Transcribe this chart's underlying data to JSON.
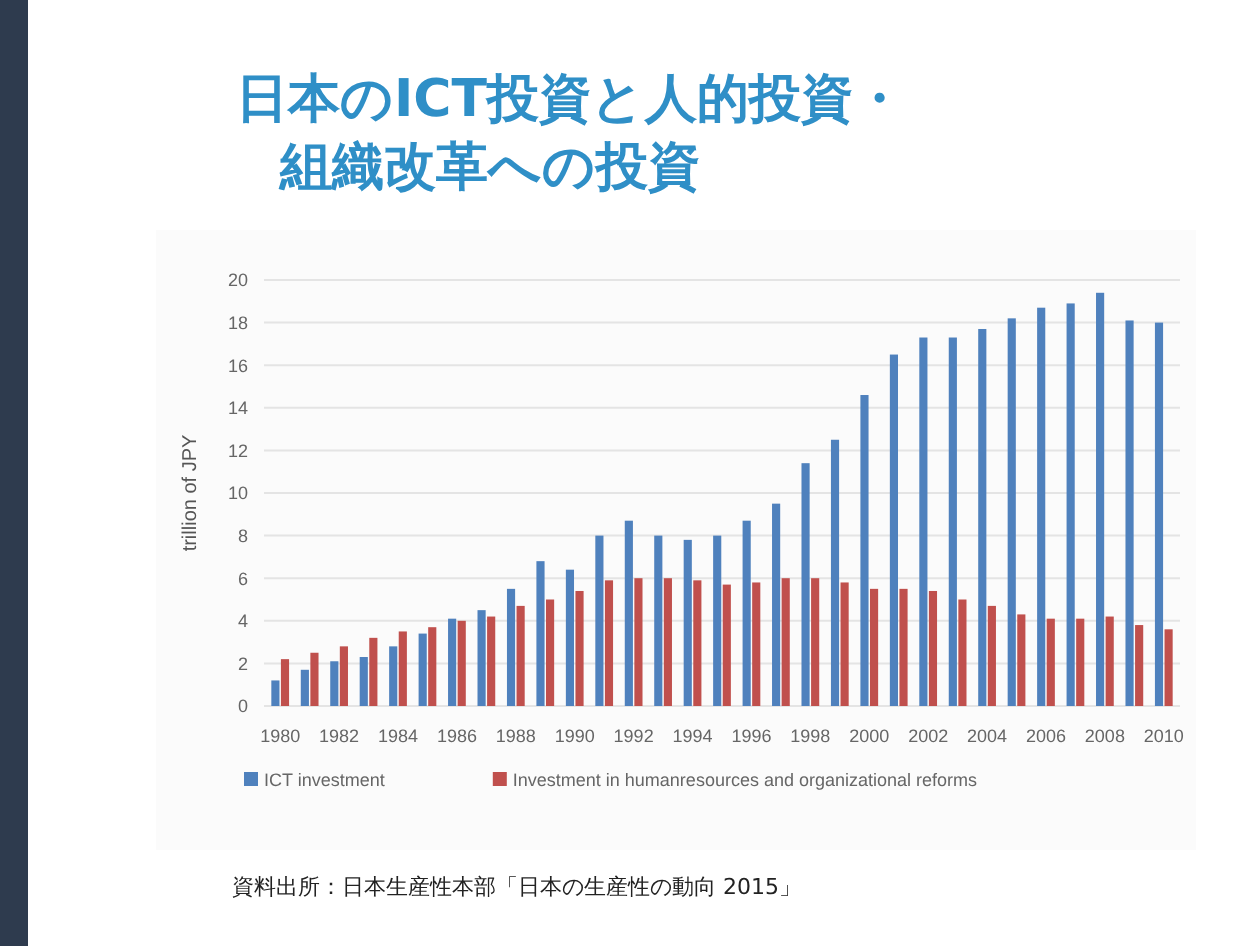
{
  "chart_data": {
    "type": "bar",
    "title": "日本のICT投資と人的投資・組織改革への投資",
    "ylabel": "trillion of JPY",
    "categories": [
      "1980",
      null,
      "1982",
      null,
      "1984",
      null,
      "1986",
      null,
      "1988",
      null,
      "1990",
      null,
      "1992",
      null,
      "1994",
      null,
      "1996",
      null,
      "1998",
      null,
      "2000",
      null,
      "2002",
      null,
      "2004",
      null,
      "2006",
      null,
      "2008",
      null,
      "2010"
    ],
    "series": [
      {
        "name": "ICT investment",
        "color": "#4f81bd",
        "values": [
          1.2,
          1.7,
          2.1,
          2.3,
          2.8,
          3.4,
          4.1,
          4.5,
          5.5,
          6.8,
          6.4,
          8.0,
          8.7,
          8.0,
          7.8,
          8.0,
          8.7,
          9.5,
          11.4,
          12.5,
          14.6,
          16.5,
          17.3,
          17.3,
          17.7,
          18.2,
          18.7,
          18.9,
          19.4,
          18.1,
          18.0
        ]
      },
      {
        "name": "Investment in humanresources and organizational reforms",
        "color": "#c0504d",
        "values": [
          2.2,
          2.5,
          2.8,
          3.2,
          3.5,
          3.7,
          4.0,
          4.2,
          4.7,
          5.0,
          5.4,
          5.9,
          6.0,
          6.0,
          5.9,
          5.7,
          5.8,
          6.0,
          6.0,
          5.8,
          5.5,
          5.5,
          5.4,
          5.0,
          4.7,
          4.3,
          4.1,
          4.1,
          4.2,
          3.8,
          3.6
        ]
      }
    ],
    "ylim": [
      0,
      20
    ],
    "yticks": [
      0,
      2,
      4,
      6,
      8,
      10,
      12,
      14,
      16,
      18,
      20
    ],
    "grid": "y",
    "legend": "bottom",
    "annotations": [
      "資料出所：日本生産性本部「日本の生産性の動向 2015」"
    ]
  }
}
